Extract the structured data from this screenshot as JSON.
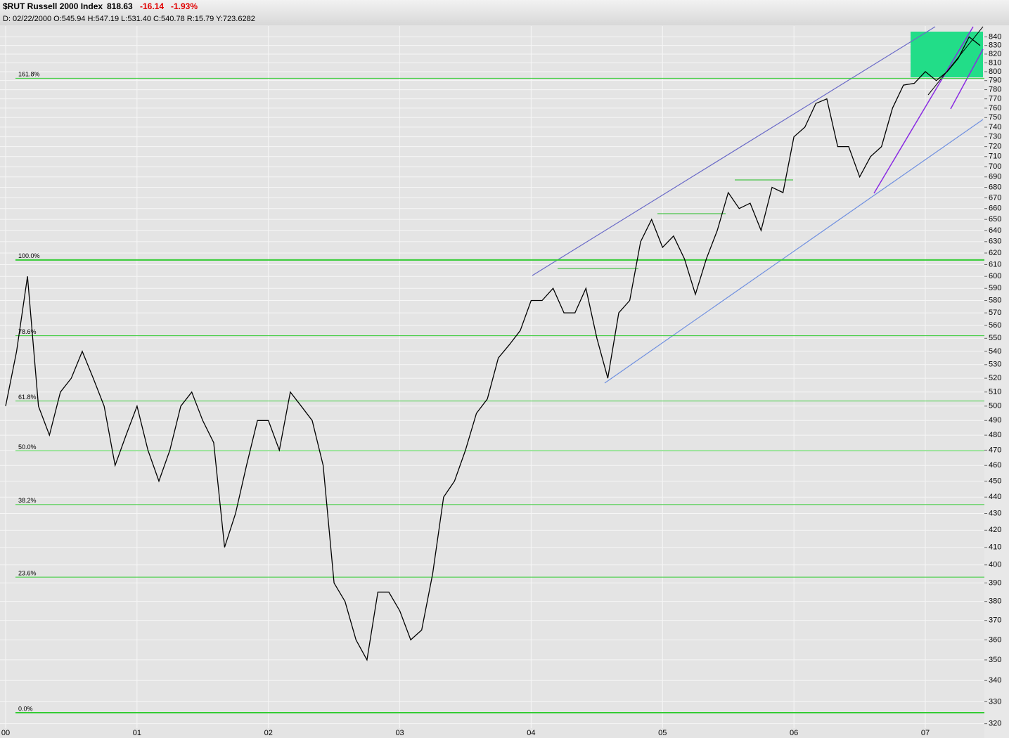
{
  "chart_data": {
    "type": "line",
    "header": {
      "title": "$RUT Russell 2000 Index",
      "last": "818.63",
      "change": "-16.14",
      "change_pct": "-1.93%",
      "ohlc": "D: 02/22/2000 O:545.94 H:547.19 L:531.40 C:540.78 R:15.79 Y:723.6282"
    },
    "categories": [
      "00",
      null,
      null,
      null,
      null,
      null,
      null,
      null,
      null,
      null,
      null,
      null,
      "01",
      null,
      null,
      null,
      null,
      null,
      null,
      null,
      null,
      null,
      null,
      null,
      "02",
      null,
      null,
      null,
      null,
      null,
      null,
      null,
      null,
      null,
      null,
      null,
      "03",
      null,
      null,
      null,
      null,
      null,
      null,
      null,
      null,
      null,
      null,
      null,
      "04",
      null,
      null,
      null,
      null,
      null,
      null,
      null,
      null,
      null,
      null,
      null,
      "05",
      null,
      null,
      null,
      null,
      null,
      null,
      null,
      null,
      null,
      null,
      null,
      "06",
      null,
      null,
      null,
      null,
      null,
      null,
      null,
      null,
      null,
      null,
      null,
      "07",
      null,
      null,
      null,
      null,
      null
    ],
    "values": [
      500,
      540,
      600,
      500,
      480,
      510,
      520,
      540,
      520,
      500,
      460,
      480,
      500,
      470,
      450,
      470,
      500,
      510,
      490,
      475,
      410,
      430,
      460,
      490,
      490,
      470,
      510,
      500,
      490,
      460,
      390,
      380,
      360,
      350,
      385,
      385,
      375,
      360,
      365,
      395,
      440,
      450,
      470,
      495,
      505,
      535,
      545,
      556,
      580,
      580,
      590,
      570,
      570,
      590,
      550,
      520,
      570,
      580,
      630,
      650,
      625,
      635,
      615,
      585,
      615,
      640,
      675,
      660,
      665,
      640,
      680,
      675,
      730,
      740,
      765,
      770,
      720,
      720,
      690,
      710,
      720,
      760,
      785,
      787,
      800,
      790,
      800,
      815,
      840,
      830
    ],
    "color": "#000000",
    "log_scale": true,
    "grid": true,
    "ylim": [
      318,
      853
    ],
    "yticks": [
      320,
      330,
      340,
      350,
      360,
      370,
      380,
      390,
      400,
      410,
      420,
      430,
      440,
      450,
      460,
      470,
      480,
      490,
      500,
      510,
      520,
      530,
      540,
      550,
      560,
      570,
      580,
      590,
      600,
      610,
      620,
      630,
      640,
      650,
      660,
      670,
      680,
      690,
      700,
      710,
      720,
      730,
      740,
      750,
      760,
      770,
      780,
      790,
      800,
      810,
      820,
      830,
      840
    ],
    "annotations": [
      {
        "label": "161.8%",
        "value": 792.6
      },
      {
        "label": "100.0%",
        "value": 614
      },
      {
        "label": "78.6%",
        "value": 552
      },
      {
        "label": "61.8%",
        "value": 503.6
      },
      {
        "label": "50.0%",
        "value": 469.5
      },
      {
        "label": "38.2%",
        "value": 435.4
      },
      {
        "label": "23.6%",
        "value": 393.2
      },
      {
        "label": "0.0%",
        "value": 325
      }
    ]
  }
}
